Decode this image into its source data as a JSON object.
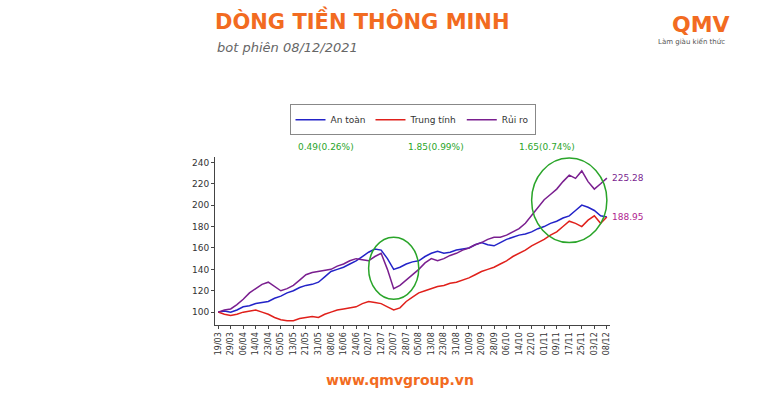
{
  "header": {
    "title": "DÒNG TIỀN THÔNG MINH",
    "subtitle": "bot phiên 08/12/2021",
    "logo": "QMV",
    "logo_tagline": "Làm giàu kiến thức"
  },
  "footer": "www.qmvgroup.vn",
  "chart_data": {
    "type": "line",
    "categories": [
      "19/03",
      null,
      "29/03",
      null,
      "06/04",
      null,
      "14/04",
      null,
      "23/04",
      null,
      "05/05",
      null,
      "13/05",
      null,
      "21/05",
      null,
      "31/05",
      null,
      "08/06",
      null,
      "16/06",
      null,
      "24/06",
      null,
      "02/07",
      null,
      "12/07",
      null,
      "20/07",
      null,
      "28/07",
      null,
      "05/08",
      null,
      "13/08",
      null,
      "23/08",
      null,
      "31/08",
      null,
      "10/09",
      null,
      "20/09",
      null,
      "28/09",
      null,
      "06/10",
      null,
      "14/10",
      null,
      "22/10",
      null,
      "01/11",
      null,
      "09/11",
      null,
      "17/11",
      null,
      "25/11",
      null,
      "03/12",
      null,
      "08/12"
    ],
    "series": [
      {
        "name": "An toàn",
        "color": "#2323c8",
        "line_style": "solid",
        "values": [
          100,
          101,
          100,
          102,
          105,
          106,
          108,
          109,
          110,
          113,
          115,
          118,
          120,
          123,
          125,
          126,
          128,
          133,
          138,
          140,
          142,
          145,
          148,
          152,
          156,
          159,
          158,
          150,
          140,
          142,
          145,
          147,
          148,
          152,
          155,
          157,
          155,
          156,
          158,
          159,
          160,
          163,
          165,
          163,
          162,
          165,
          168,
          170,
          172,
          173,
          175,
          178,
          180,
          183,
          185,
          188,
          190,
          195,
          200,
          198,
          195,
          190,
          188.95
        ]
      },
      {
        "name": "Trung tính",
        "color": "#e0201b",
        "line_style": "solid",
        "values": [
          100,
          98,
          97,
          98,
          100,
          101,
          102,
          100,
          98,
          95,
          93,
          92,
          92,
          94,
          95,
          96,
          95,
          98,
          100,
          102,
          103,
          104,
          105,
          108,
          110,
          109,
          108,
          105,
          102,
          104,
          110,
          114,
          118,
          120,
          122,
          124,
          125,
          127,
          128,
          130,
          132,
          135,
          138,
          140,
          142,
          145,
          148,
          152,
          155,
          158,
          162,
          165,
          168,
          172,
          175,
          180,
          185,
          183,
          180,
          186,
          190,
          183,
          188.95
        ]
      },
      {
        "name": "Rủi ro",
        "color": "#7a1f8f",
        "line_style": "solid",
        "values": [
          100,
          102,
          103,
          107,
          112,
          118,
          122,
          126,
          128,
          124,
          120,
          122,
          125,
          130,
          135,
          137,
          138,
          139,
          140,
          143,
          145,
          148,
          150,
          149,
          148,
          152,
          155,
          140,
          122,
          125,
          130,
          135,
          140,
          146,
          150,
          148,
          150,
          153,
          155,
          158,
          160,
          163,
          165,
          168,
          170,
          170,
          172,
          175,
          178,
          183,
          190,
          198,
          205,
          210,
          215,
          222,
          228,
          225,
          232,
          222,
          215,
          220,
          225.28
        ]
      }
    ],
    "ylim": [
      88,
      245
    ],
    "yticks": [
      100,
      120,
      140,
      160,
      180,
      200,
      220,
      240
    ],
    "grid": false,
    "legend": "top",
    "stats": [
      {
        "series": "An toàn",
        "text": "0.49(0.26%)",
        "color": "#2aa52a"
      },
      {
        "series": "Trung tính",
        "text": "1.85(0.99%)",
        "color": "#2aa52a"
      },
      {
        "series": "Rủi ro",
        "text": "1.65(0.74%)",
        "color": "#2aa52a"
      }
    ],
    "annotations": [
      {
        "category": "08/12",
        "value": 225.28,
        "text": "225.28",
        "color": "#7a1f8f"
      },
      {
        "category": "08/12",
        "value": 188.95,
        "text": "188.95",
        "color": "#b0248f"
      }
    ],
    "highlights": [
      {
        "x_from": "02/07",
        "x_to": "05/08",
        "y_from": 112,
        "y_to": 170,
        "color": "#2aa52a"
      },
      {
        "x_from": "22/10",
        "x_to": "08/12",
        "y_from": 165,
        "y_to": 244,
        "color": "#2aa52a"
      }
    ]
  }
}
